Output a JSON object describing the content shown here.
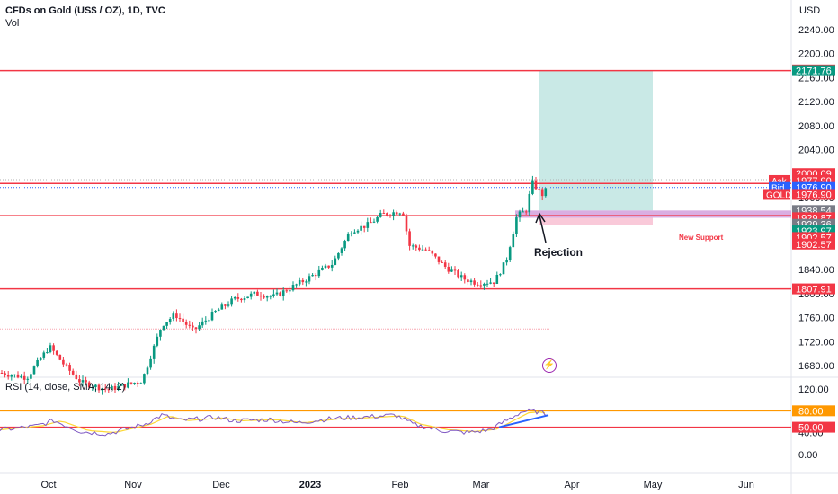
{
  "header": {
    "title": "CFDs on Gold (US$ / OZ), 1D, TVC",
    "vol_label": "Vol",
    "currency": "USD",
    "rsi_label": "RSI (14, close, SMA, 14, 2)",
    "bolt_icon": "lightning-icon"
  },
  "annotations": {
    "rejection": "Rejection",
    "new_support": "New Support"
  },
  "price_axis": {
    "ticks": [
      "2240.00",
      "2200.00",
      "2160.00",
      "2120.00",
      "2080.00",
      "2040.00",
      "2000.00",
      "1960.00",
      "1920.00",
      "1880.00",
      "1840.00",
      "1800.00",
      "1760.00",
      "1720.00",
      "1680.00"
    ],
    "tick_values": [
      2240,
      2200,
      2160,
      2120,
      2080,
      2040,
      2000,
      1960,
      1920,
      1880,
      1840,
      1800,
      1760,
      1720,
      1680
    ],
    "labels": [
      {
        "text": "2172.92",
        "value": 2172.92,
        "color": "#f23645"
      },
      {
        "text": "2171.76",
        "value": 2171.76,
        "color": "#089981"
      },
      {
        "text": "2000.09",
        "value": 2000.09,
        "color": "#f23645"
      },
      {
        "text": "1977.90",
        "value": 1988.5,
        "color": "#f23645",
        "prefix": "Ask"
      },
      {
        "text": "1976.90",
        "value": 1976.9,
        "color": "#2962ff",
        "prefix": "Bid"
      },
      {
        "text": "1976.90",
        "value": 1965.3,
        "color": "#f23645",
        "prefix": "GOLD"
      },
      {
        "text": "1938.54",
        "value": 1938.54,
        "color": "#787b86"
      },
      {
        "text": "1929.87",
        "value": 1926.5,
        "color": "#f23645"
      },
      {
        "text": "1929.36",
        "value": 1915.5,
        "color": "#787b86"
      },
      {
        "text": "1923.97",
        "value": 1904.5,
        "color": "#089981"
      },
      {
        "text": "1902.57",
        "value": 1893.5,
        "color": "#f23645"
      },
      {
        "text": "1902.57",
        "value": 1882.5,
        "color": "#f23645"
      },
      {
        "text": "1807.91",
        "value": 1807.91,
        "color": "#f23645"
      }
    ]
  },
  "rsi_axis": {
    "ticks": [
      "120.00",
      "80.00",
      "40.00",
      "0.00"
    ],
    "tick_values": [
      120,
      80,
      40,
      0
    ],
    "labels": [
      {
        "text": "80.00",
        "value": 80,
        "color": "#ff9800"
      },
      {
        "text": "50.00",
        "value": 50,
        "color": "#f23645"
      }
    ]
  },
  "time_axis": {
    "labels": [
      {
        "text": "Oct",
        "bold": false
      },
      {
        "text": "Nov",
        "bold": false
      },
      {
        "text": "Dec",
        "bold": false
      },
      {
        "text": "2023",
        "bold": true
      },
      {
        "text": "Feb",
        "bold": false
      },
      {
        "text": "Mar",
        "bold": false
      },
      {
        "text": "Apr",
        "bold": false
      },
      {
        "text": "May",
        "bold": false
      },
      {
        "text": "Jun",
        "bold": false
      }
    ]
  },
  "colors": {
    "up": "#089981",
    "down": "#f23645",
    "level_line": "#f23645",
    "rsi_line": "#7e57c2",
    "rsi_ma": "#fdd835",
    "rsi_80": "#ff9800",
    "rsi_50": "#f23645",
    "target_zone": "#b2dfdb",
    "support_zone": "#ce93d8",
    "stop_zone": "#f8bbd0",
    "trendline": "#2962ff"
  },
  "chart_data": {
    "type": "candlestick",
    "series": [
      {
        "name": "GOLD",
        "close_path": [
          {
            "month": "Sep",
            "close": 1668
          },
          {
            "month": "Oct",
            "close": 1712
          },
          {
            "month": "Oct",
            "close": 1652
          },
          {
            "month": "Nov",
            "close": 1640
          },
          {
            "month": "Nov",
            "close": 1768
          },
          {
            "month": "Dec",
            "close": 1790
          },
          {
            "month": "Dec",
            "close": 1815
          },
          {
            "month": "2023",
            "close": 1840
          },
          {
            "month": "Jan",
            "close": 1930
          },
          {
            "month": "Feb",
            "close": 1915
          },
          {
            "month": "Feb",
            "close": 1870
          },
          {
            "month": "Mar",
            "close": 1818
          },
          {
            "month": "Mar",
            "close": 1930
          },
          {
            "month": "Mar",
            "close": 1985
          },
          {
            "month": "Mar",
            "close": 1976.9
          }
        ]
      }
    ],
    "levels": [
      2171.76,
      1983.5,
      1929.87,
      1807.91
    ],
    "zones": [
      {
        "name": "target",
        "from": 1938.54,
        "to": 2171.76
      },
      {
        "name": "support",
        "from": 1929.36,
        "to": 1938.54
      },
      {
        "name": "stop",
        "from": 1929.87,
        "to": 1923.97
      }
    ],
    "rsi": {
      "levels": [
        80,
        50
      ],
      "ylim": [
        0,
        120
      ]
    },
    "ylim": [
      1662,
      2268
    ]
  }
}
